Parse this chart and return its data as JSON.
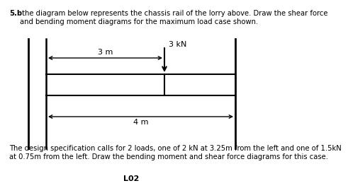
{
  "title_bold": "5.b",
  "title_rest": " the diagram below represents the chassis rail of the lorry above. Draw the shear force\nand bending moment diagrams for the maximum load case shown.",
  "load_label": "3 kN",
  "dim_top_label": "3 m",
  "dim_bottom_label": "4 m",
  "footer_text": "The design specification calls for 2 loads, one of 2 kN at 3.25m from the left and one of 1.5kN\nat 0.75m from the left. Draw the bending moment and shear force diagrams for this case.",
  "page_label": "L02",
  "bg_color": "#ffffff",
  "line_color": "#000000",
  "text_color": "#000000",
  "title_fontsize": 7.2,
  "label_fontsize": 8.0,
  "footer_fontsize": 7.2,
  "page_fontsize": 8.0
}
